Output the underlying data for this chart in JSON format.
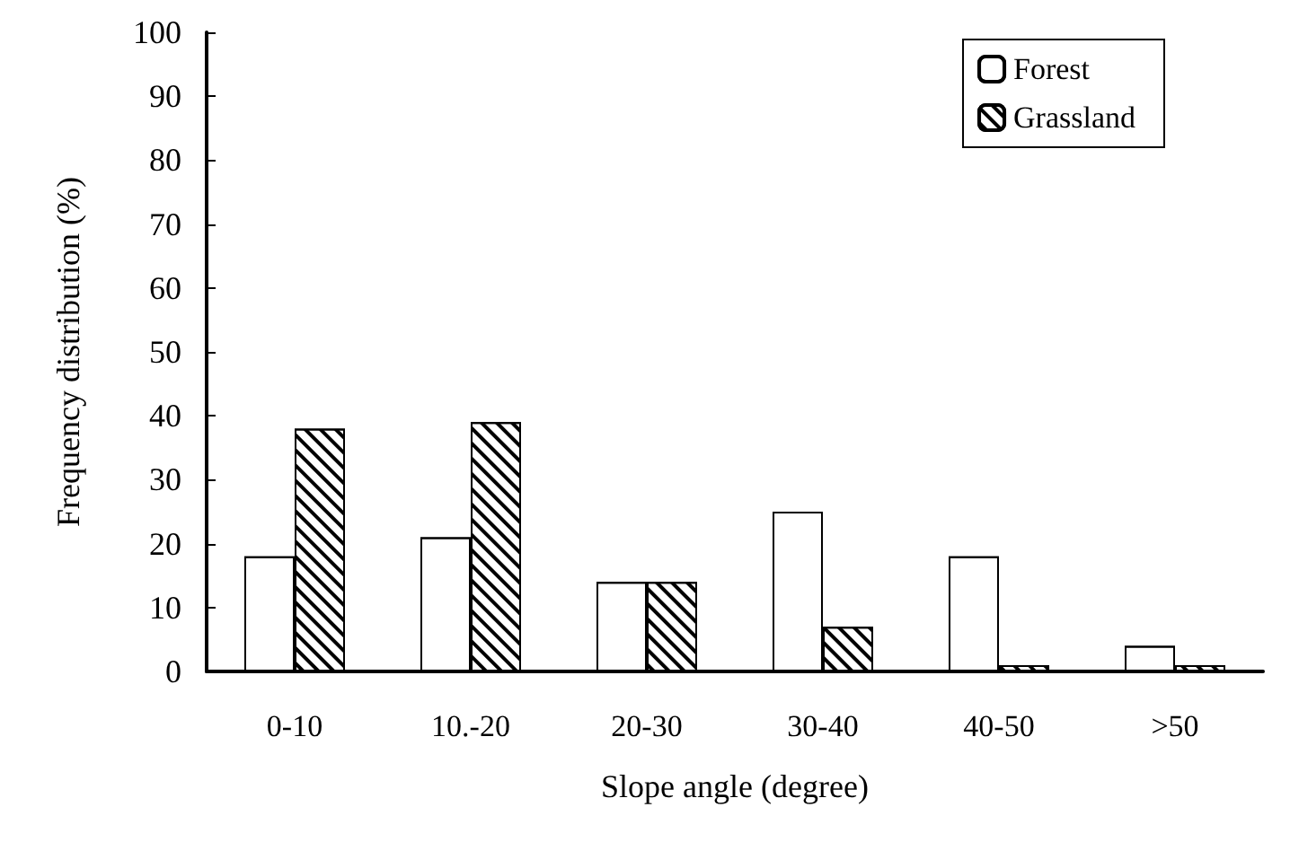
{
  "chart_data": {
    "type": "bar",
    "xlabel": "Slope angle (degree)",
    "ylabel": "Frequency distribution (%)",
    "categories": [
      "0-10",
      "10.-20",
      "20-30",
      "30-40",
      "40-50",
      ">50"
    ],
    "series": [
      {
        "name": "Forest",
        "color": "#ffffff",
        "values": [
          18,
          21,
          14,
          25,
          18,
          4
        ]
      },
      {
        "name": "Grassland",
        "color": "#000000",
        "values": [
          38,
          39,
          14,
          7,
          1,
          1
        ]
      }
    ],
    "ylim": [
      0,
      100
    ],
    "yticks": [
      0,
      10,
      20,
      30,
      40,
      50,
      60,
      70,
      80,
      90,
      100
    ],
    "grid": false,
    "legend": "top right"
  }
}
